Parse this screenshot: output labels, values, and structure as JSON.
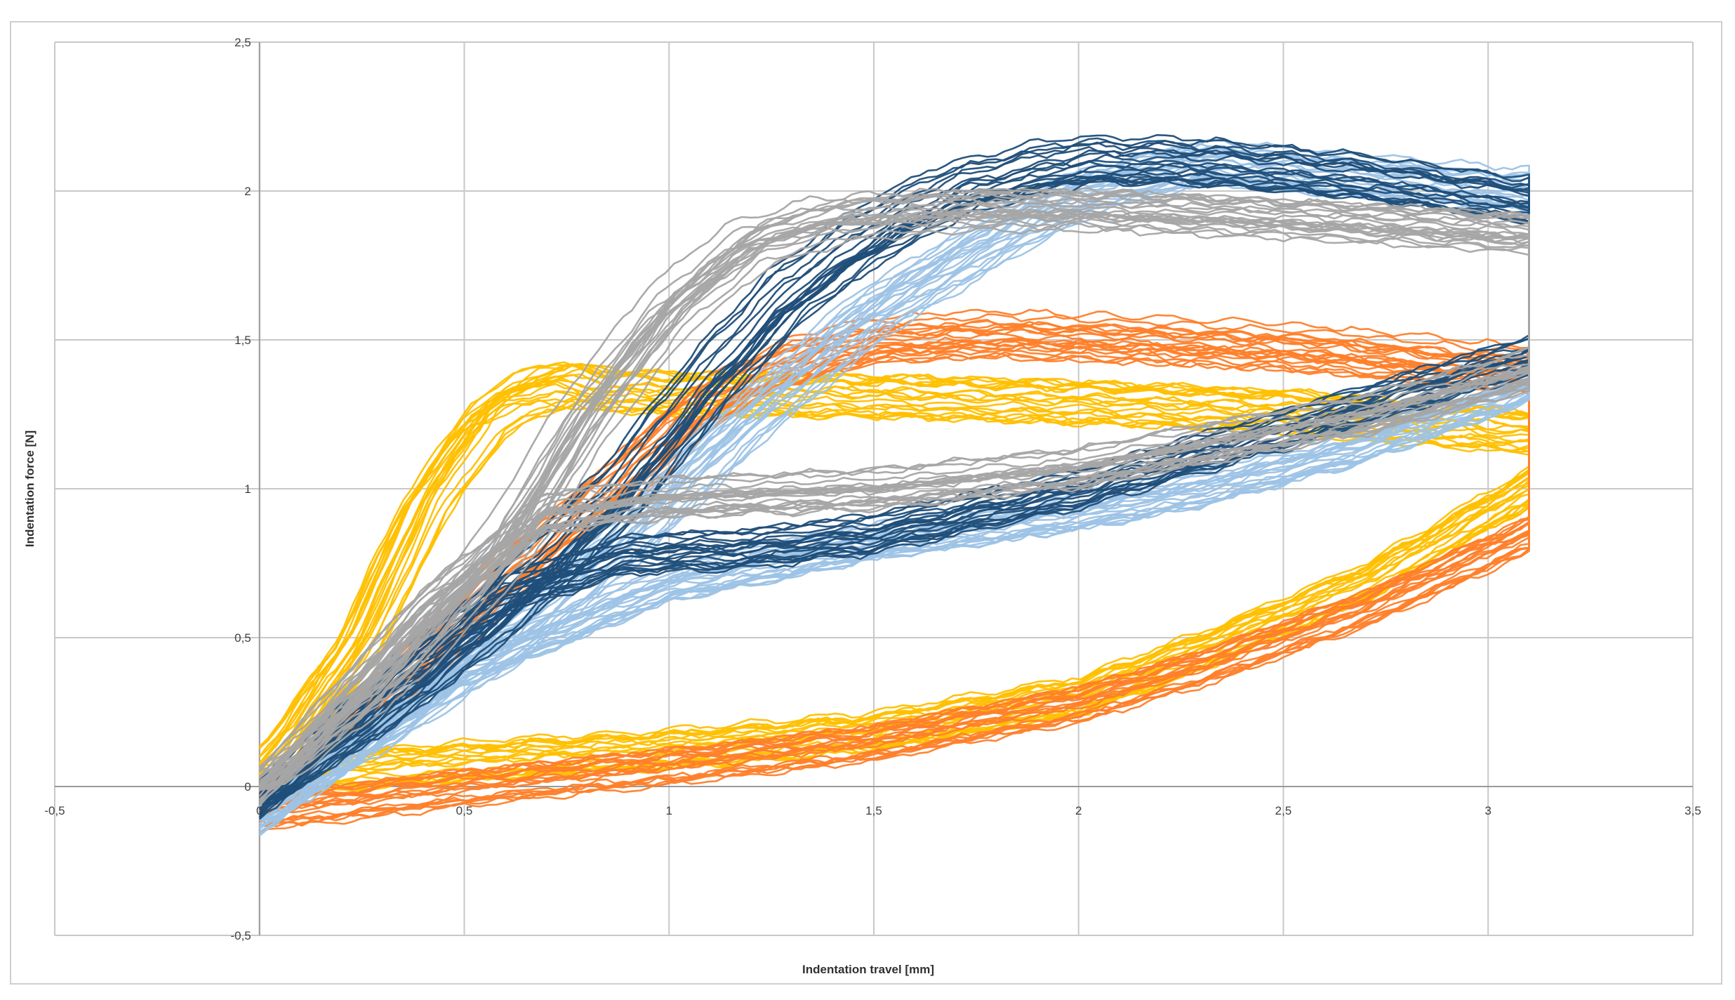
{
  "chart_data": {
    "type": "line",
    "title": "",
    "xlabel": "Indentation travel [mm]",
    "ylabel": "Indentation force [N]",
    "xlim": [
      -0.5,
      3.5
    ],
    "ylim": [
      -0.5,
      2.5
    ],
    "x_ticks": [
      -0.5,
      0,
      0.5,
      1,
      1.5,
      2,
      2.5,
      3,
      3.5
    ],
    "y_ticks": [
      -0.5,
      0,
      0.5,
      1,
      1.5,
      2,
      2.5
    ],
    "x_tick_labels": [
      "-0,5",
      "0",
      "0,5",
      "1",
      "1,5",
      "2",
      "2,5",
      "3",
      "3,5"
    ],
    "y_tick_labels": [
      "-0,5",
      "0",
      "0,5",
      "1",
      "1,5",
      "2",
      "2,5"
    ],
    "grid": true,
    "legend": "none",
    "series": [
      {
        "color": "#ffc000",
        "count": 22,
        "load": {
          "x": [
            0,
            0.1,
            0.25,
            0.4,
            0.55,
            0.65,
            0.75,
            0.85,
            1.0,
            1.5,
            2.0,
            2.5,
            3.1
          ],
          "y": [
            0.03,
            0.2,
            0.5,
            0.95,
            1.25,
            1.33,
            1.37,
            1.34,
            1.33,
            1.32,
            1.3,
            1.27,
            1.2
          ]
        },
        "unload": {
          "x": [
            3.1,
            2.7,
            2.3,
            2.0,
            1.5,
            1.0,
            0.5,
            0.2,
            0
          ],
          "y": [
            1.0,
            0.68,
            0.45,
            0.3,
            0.18,
            0.12,
            0.08,
            0.05,
            0.0
          ]
        }
      },
      {
        "color": "#ff7f2a",
        "count": 22,
        "load": {
          "x": [
            0,
            0.3,
            0.6,
            0.9,
            1.1,
            1.3,
            1.5,
            1.8,
            2.2,
            2.6,
            3.1
          ],
          "y": [
            -0.05,
            0.3,
            0.7,
            1.05,
            1.3,
            1.43,
            1.5,
            1.52,
            1.5,
            1.47,
            1.4
          ]
        },
        "unload": {
          "x": [
            3.1,
            2.7,
            2.3,
            2.0,
            1.5,
            1.0,
            0.5,
            0.2,
            0
          ],
          "y": [
            0.85,
            0.6,
            0.4,
            0.28,
            0.15,
            0.07,
            0.0,
            -0.05,
            -0.08
          ]
        }
      },
      {
        "color": "#9dc3e6",
        "count": 22,
        "load": {
          "x": [
            0,
            0.3,
            0.6,
            0.9,
            1.2,
            1.5,
            1.8,
            2.0,
            2.3,
            2.7,
            3.1
          ],
          "y": [
            -0.1,
            0.2,
            0.5,
            0.85,
            1.25,
            1.6,
            1.85,
            2.0,
            2.1,
            2.05,
            2.0
          ]
        },
        "unload": {
          "x": [
            3.1,
            2.7,
            2.3,
            2.0,
            1.5,
            1.0,
            0.5,
            0.2,
            0
          ],
          "y": [
            1.35,
            1.15,
            1.0,
            0.92,
            0.82,
            0.68,
            0.4,
            0.1,
            -0.1
          ]
        }
      },
      {
        "color": "#1f4e79",
        "count": 20,
        "load": {
          "x": [
            0,
            0.3,
            0.6,
            0.9,
            1.1,
            1.3,
            1.5,
            1.7,
            2.0,
            2.3,
            2.7,
            3.1
          ],
          "y": [
            -0.05,
            0.25,
            0.6,
            1.0,
            1.35,
            1.65,
            1.85,
            2.0,
            2.1,
            2.1,
            2.05,
            1.97
          ]
        },
        "unload": {
          "x": [
            3.1,
            2.7,
            2.3,
            2.0,
            1.5,
            1.2,
            0.9,
            0.6,
            0.3,
            0
          ],
          "y": [
            1.45,
            1.28,
            1.12,
            1.0,
            0.85,
            0.8,
            0.78,
            0.65,
            0.35,
            -0.05
          ]
        }
      },
      {
        "color": "#a5a5a5",
        "count": 22,
        "load": {
          "x": [
            0,
            0.3,
            0.6,
            0.8,
            1.0,
            1.2,
            1.4,
            1.7,
            2.0,
            2.5,
            3.1
          ],
          "y": [
            0.0,
            0.35,
            0.8,
            1.25,
            1.6,
            1.82,
            1.9,
            1.93,
            1.93,
            1.9,
            1.85
          ]
        },
        "unload": {
          "x": [
            3.1,
            2.7,
            2.3,
            2.0,
            1.5,
            1.0,
            0.7,
            0.4,
            0.2,
            0
          ],
          "y": [
            1.4,
            1.25,
            1.15,
            1.07,
            1.0,
            0.97,
            0.92,
            0.6,
            0.3,
            0.0
          ]
        }
      }
    ]
  }
}
